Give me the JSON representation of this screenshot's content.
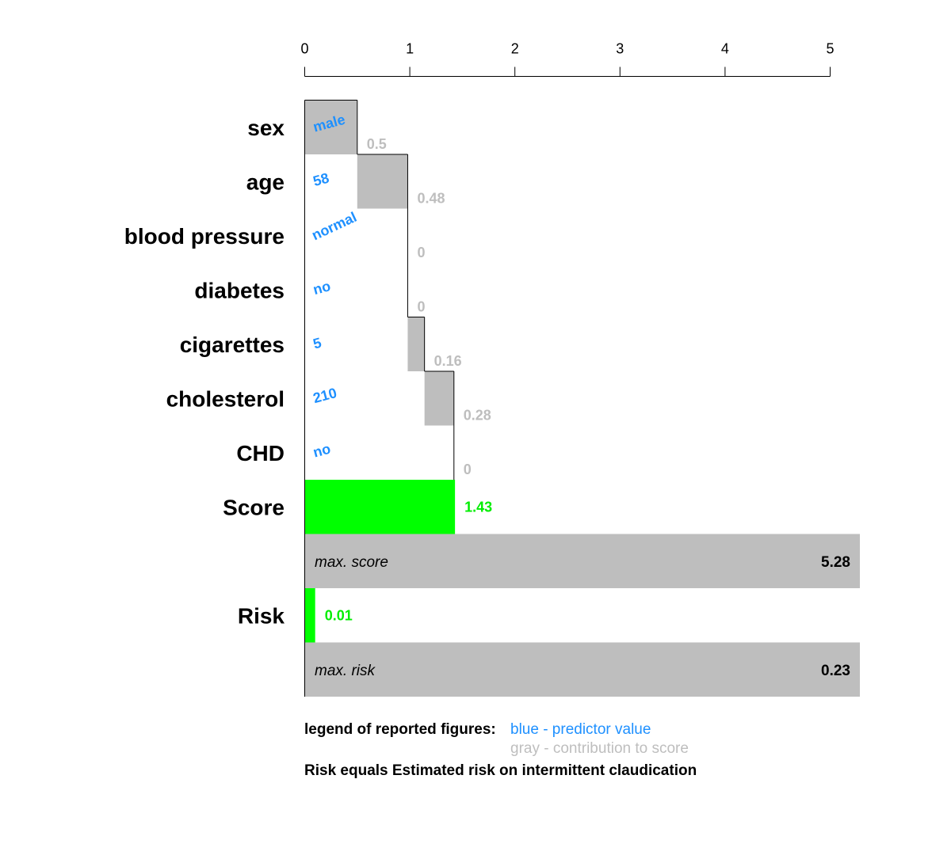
{
  "chart_data": {
    "type": "bar",
    "subtype": "points-nomogram",
    "axis": {
      "ticks": [
        "0",
        "1",
        "2",
        "3",
        "4",
        "5"
      ],
      "range": [
        0,
        5
      ]
    },
    "predictors": [
      {
        "label": "sex",
        "value": "male",
        "contribution": 0.5,
        "contribution_label": "0.5",
        "value_angle": -15
      },
      {
        "label": "age",
        "value": "58",
        "contribution": 0.48,
        "contribution_label": "0.48",
        "value_angle": -15
      },
      {
        "label": "blood pressure",
        "value": "normal",
        "contribution": 0,
        "contribution_label": "0",
        "value_angle": -25
      },
      {
        "label": "diabetes",
        "value": "no",
        "contribution": 0,
        "contribution_label": "0",
        "value_angle": -15
      },
      {
        "label": "cigarettes",
        "value": "5",
        "contribution": 0.16,
        "contribution_label": "0.16",
        "value_angle": -15
      },
      {
        "label": "cholesterol",
        "value": "210",
        "contribution": 0.28,
        "contribution_label": "0.28",
        "value_angle": -15
      },
      {
        "label": "CHD",
        "value": "no",
        "contribution": 0,
        "contribution_label": "0",
        "value_angle": -15
      }
    ],
    "score": {
      "label": "Score",
      "value": 1.43,
      "value_label": "1.43"
    },
    "max_score": {
      "label": "max. score",
      "value": 5.28,
      "value_label": "5.28"
    },
    "risk": {
      "label": "Risk",
      "value": 0.01,
      "value_label": "0.01"
    },
    "max_risk": {
      "label": "max. risk",
      "value": 0.23,
      "value_label": "0.23"
    },
    "colors": {
      "predictor_value": "#1E90FF",
      "contribution": "#BEBEBE",
      "score": "#00FF00",
      "score_text": "#00EE00",
      "max_bar": "#BEBEBE"
    }
  },
  "legend": {
    "title": "legend of reported figures:",
    "blue": "blue - predictor value",
    "gray": "gray - contribution to score",
    "risk_note": "Risk equals Estimated risk on intermittent claudication"
  }
}
